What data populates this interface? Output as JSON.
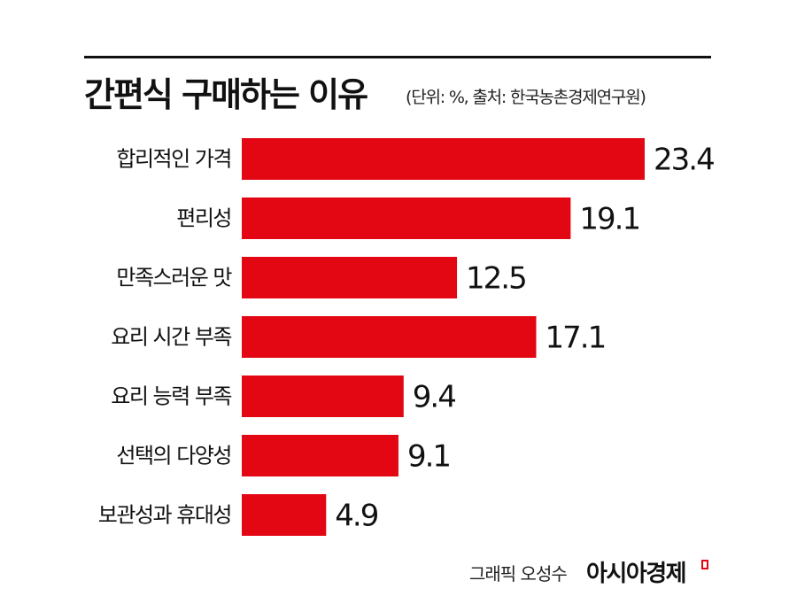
{
  "title": "간편식 구매하는 이유",
  "subtitle": "(단위: %, 출처: 한국농촌경제연구원)",
  "credit": "그래픽 오성수",
  "brand": "아시아경제",
  "colors": {
    "bar": "#e30613",
    "text": "#111111",
    "rule": "#111111"
  },
  "chart_data": {
    "type": "bar",
    "orientation": "horizontal",
    "categories": [
      "합리적인 가격",
      "편리성",
      "만족스러운 맛",
      "요리 시간 부족",
      "요리 능력 부족",
      "선택의 다양성",
      "보관성과 휴대성"
    ],
    "values": [
      23.4,
      19.1,
      12.5,
      17.1,
      9.4,
      9.1,
      4.9
    ],
    "value_labels": [
      "23.4",
      "19.1",
      "12.5",
      "17.1",
      "9.4",
      "9.1",
      "4.9"
    ],
    "title": "간편식 구매하는 이유",
    "unit": "%",
    "xlim": [
      0,
      23.4
    ],
    "grid": false,
    "legend": "none"
  }
}
